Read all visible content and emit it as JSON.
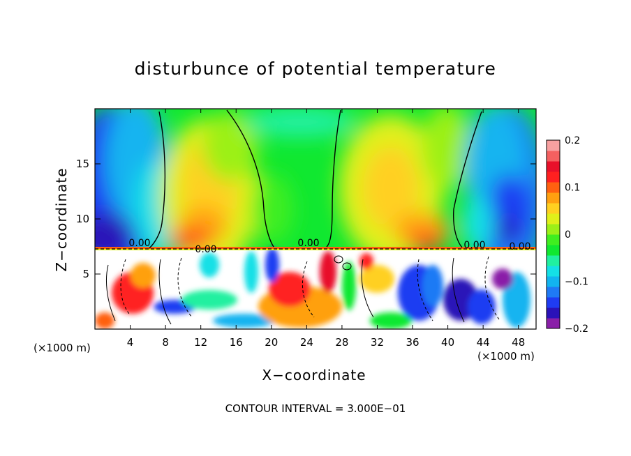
{
  "chart_data": {
    "type": "heatmap",
    "title": "disturbunce of potential temperature",
    "xlabel": "X−coordinate",
    "ylabel": "Z−coordinate",
    "x_unit": "(×1000 m)",
    "xlim": [
      0,
      50
    ],
    "ylim": [
      0,
      20
    ],
    "x_ticks": [
      4,
      8,
      12,
      16,
      20,
      24,
      28,
      32,
      36,
      40,
      44,
      48
    ],
    "y_ticks": [
      5,
      10,
      15
    ],
    "colorbar": {
      "range": [
        -0.2,
        0.2
      ],
      "tick_values": [
        0.2,
        0.1,
        0,
        -0.1,
        -0.2
      ],
      "tick_labels": [
        "0.2",
        "0.1",
        "0",
        "−0.1",
        "−0.2"
      ],
      "colors": [
        "#8a1fa8",
        "#2a12b8",
        "#1f3cf2",
        "#1f7af5",
        "#12b4f0",
        "#14e0e6",
        "#20f0a0",
        "#10e830",
        "#40ee20",
        "#9cf018",
        "#e0f01a",
        "#ffd020",
        "#ffa010",
        "#ff6010",
        "#ff2020",
        "#e8102a",
        "#f46060",
        "#f8a0a0"
      ]
    },
    "contour_labels": [
      "0.00",
      "0.00",
      "0.00",
      "0.00",
      "0.00"
    ],
    "footer": "CONTOUR INTERVAL =  3.000E−01",
    "grid": false,
    "legend": "colorbar-right"
  },
  "colors": {
    "background": "#ffffff",
    "axis": "#000000",
    "contour": "#000000"
  }
}
